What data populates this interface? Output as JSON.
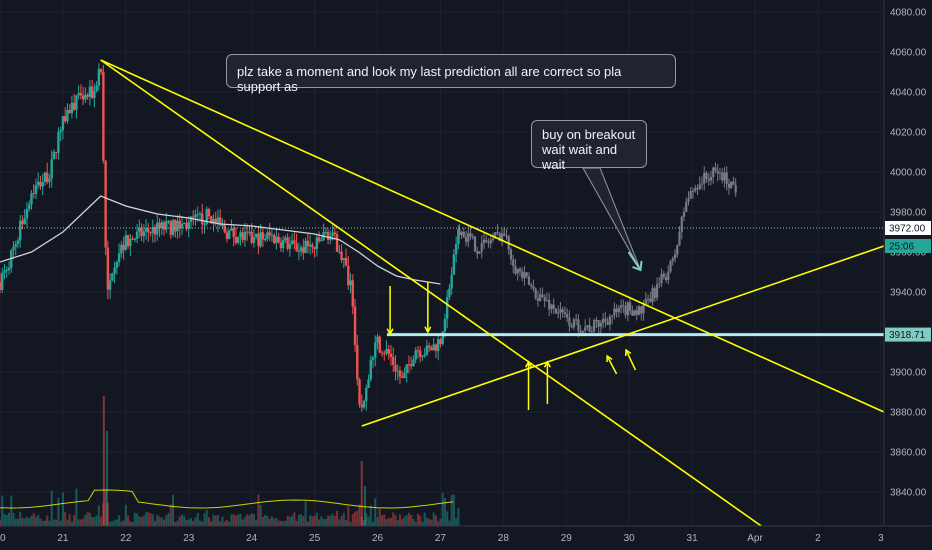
{
  "chart_data": {
    "type": "candlestick",
    "title": "",
    "y_axis": {
      "ticks": [
        3840,
        3860,
        3880,
        3900,
        3920,
        3940,
        3960,
        3980,
        4000,
        4020,
        4040,
        4060,
        4080
      ],
      "tick_labels": [
        "3840.00",
        "3860.00",
        "3880.00",
        "3900.00",
        "3920.00",
        "3940.00",
        "3960.00",
        "3980.00",
        "4000.00",
        "4020.00",
        "4040.00",
        "4060.00",
        "4080.00"
      ],
      "ylim": [
        3823,
        4086
      ]
    },
    "x_axis": {
      "tick_labels": [
        "20",
        "21",
        "22",
        "23",
        "24",
        "25",
        "26",
        "27",
        "28",
        "29",
        "30",
        "31",
        "Apr",
        "2",
        "3"
      ],
      "tick_days": [
        20,
        21,
        22,
        23,
        24,
        25,
        26,
        27,
        28,
        29,
        30,
        31,
        32,
        33,
        34
      ],
      "xlim": [
        20,
        34.05
      ]
    },
    "price_tags": [
      {
        "label": "3972.00",
        "value": 3972,
        "color": "#ffffff"
      },
      {
        "label": "3918.71",
        "value": 3918.71,
        "color": "#80cbc4"
      },
      {
        "label": "25:06",
        "value": 3963,
        "color": "#26a69a"
      }
    ],
    "actual_price": {
      "anchors": [
        [
          20,
          3945
        ],
        [
          20.2,
          3960
        ],
        [
          20.5,
          3990
        ],
        [
          20.8,
          4000
        ],
        [
          21.0,
          4028
        ],
        [
          21.2,
          4035
        ],
        [
          21.5,
          4040
        ],
        [
          21.6,
          4056
        ],
        [
          21.65,
          4000
        ],
        [
          21.7,
          3935
        ],
        [
          21.8,
          3955
        ],
        [
          22.0,
          3965
        ],
        [
          22.3,
          3970
        ],
        [
          22.6,
          3972
        ],
        [
          23.0,
          3974
        ],
        [
          23.3,
          3978
        ],
        [
          23.6,
          3970
        ],
        [
          24.0,
          3966
        ],
        [
          24.3,
          3968
        ],
        [
          24.7,
          3962
        ],
        [
          25.0,
          3962
        ],
        [
          25.2,
          3970
        ],
        [
          25.4,
          3962
        ],
        [
          25.6,
          3940
        ],
        [
          25.7,
          3880
        ],
        [
          25.8,
          3885
        ],
        [
          25.9,
          3905
        ],
        [
          26.0,
          3915
        ],
        [
          26.2,
          3908
        ],
        [
          26.4,
          3895
        ],
        [
          26.6,
          3912
        ],
        [
          26.8,
          3910
        ],
        [
          27.0,
          3916
        ],
        [
          27.3,
          3972
        ]
      ],
      "up_color": "#26a69a",
      "down_color": "#ef5350"
    },
    "projected_price": {
      "anchors": [
        [
          27.3,
          3972
        ],
        [
          27.6,
          3962
        ],
        [
          28.0,
          3970
        ],
        [
          28.2,
          3952
        ],
        [
          28.5,
          3940
        ],
        [
          28.8,
          3932
        ],
        [
          29.1,
          3924
        ],
        [
          29.4,
          3922
        ],
        [
          29.7,
          3928
        ],
        [
          30.0,
          3932
        ],
        [
          30.2,
          3930
        ],
        [
          30.4,
          3940
        ],
        [
          30.7,
          3955
        ],
        [
          30.9,
          3985
        ],
        [
          31.1,
          3995
        ],
        [
          31.4,
          4000
        ],
        [
          31.7,
          3992
        ]
      ],
      "color": "#787b86"
    },
    "moving_average": {
      "points": [
        [
          20,
          3955
        ],
        [
          20.5,
          3960
        ],
        [
          21.0,
          3970
        ],
        [
          21.6,
          3988
        ],
        [
          22.0,
          3983
        ],
        [
          22.5,
          3979
        ],
        [
          23.0,
          3977
        ],
        [
          23.5,
          3974
        ],
        [
          24.0,
          3973
        ],
        [
          24.5,
          3971
        ],
        [
          25.0,
          3969
        ],
        [
          25.4,
          3966
        ],
        [
          25.7,
          3960
        ],
        [
          26.0,
          3953
        ],
        [
          26.3,
          3948
        ],
        [
          26.6,
          3946
        ],
        [
          27.0,
          3944
        ]
      ],
      "color": "#d1d4dc"
    },
    "trendlines": [
      {
        "from": [
          21.6,
          4056
        ],
        "to": [
          32.1,
          3823
        ],
        "color": "#ffff00"
      },
      {
        "from": [
          21.6,
          4056
        ],
        "to": [
          34.05,
          3880
        ],
        "color": "#ffff00"
      },
      {
        "from": [
          25.75,
          3873
        ],
        "to": [
          34.05,
          3963
        ],
        "color": "#ffff00"
      }
    ],
    "support_line": {
      "from": [
        26.15,
        3918.71
      ],
      "to": [
        34.05,
        3918.71
      ],
      "color": "#b2ebf2"
    },
    "dotted_price_line": {
      "value": 3972,
      "color": "#80cbc4"
    },
    "arrows": [
      {
        "from": [
          26.2,
          3943
        ],
        "to": [
          26.2,
          3919
        ],
        "color": "#ffff00"
      },
      {
        "from": [
          26.8,
          3945
        ],
        "to": [
          26.8,
          3920
        ],
        "color": "#ffff00"
      },
      {
        "from": [
          28.4,
          3881
        ],
        "to": [
          28.4,
          3905
        ],
        "color": "#ffff00"
      },
      {
        "from": [
          28.7,
          3884
        ],
        "to": [
          28.7,
          3905
        ],
        "color": "#ffff00"
      },
      {
        "from": [
          29.8,
          3899
        ],
        "to": [
          29.65,
          3908
        ],
        "color": "#ffff00"
      },
      {
        "from": [
          30.1,
          3901
        ],
        "to": [
          29.95,
          3911
        ],
        "color": "#ffff00"
      }
    ],
    "volume": {
      "color_up": "#26a69a",
      "color_down": "#ef5350",
      "ma_color": "#ffff00"
    },
    "annotations": [
      {
        "id": "top",
        "text": "plz take a moment  and look my last prediction all are correct so pla support as"
      },
      {
        "id": "buy",
        "lines": [
          "buy on breakout",
          "wait wait and wait"
        ]
      }
    ],
    "callout_pointer": {
      "tip": [
        30.18,
        3951
      ],
      "color": "#80cbc4"
    }
  }
}
